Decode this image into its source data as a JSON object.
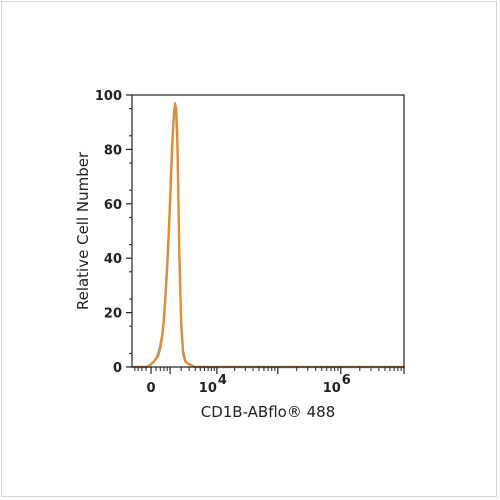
{
  "chart_data": {
    "type": "line",
    "title": "",
    "xlabel": "CD1B-ABflo® 488",
    "ylabel": "Relative Cell Number",
    "x_scale": "biexponential",
    "xlim": [
      -1000,
      10000000
    ],
    "ylim": [
      0,
      100
    ],
    "y_ticks": [
      0,
      20,
      40,
      60,
      80,
      100
    ],
    "x_ticks": [
      {
        "value": 0,
        "base": "0",
        "exp": ""
      },
      {
        "value": 10000,
        "base": "10",
        "exp": "4"
      },
      {
        "value": 1000000,
        "base": "10",
        "exp": "6"
      }
    ],
    "grid": false,
    "legend": "none",
    "series": [
      {
        "color": "#4fc3c8",
        "x": [
          -900,
          -500,
          -300,
          -150,
          0,
          100,
          200,
          300,
          400,
          500,
          600,
          700,
          800,
          900,
          1000,
          1100,
          1200,
          1300,
          1400,
          1500,
          1600,
          1700,
          1800,
          2000,
          2200,
          2500,
          3000,
          4000,
          6000,
          10000,
          100000,
          1000000,
          10000000
        ],
        "values": [
          0,
          0,
          0,
          0,
          1,
          2,
          3,
          5,
          8,
          12,
          18,
          28,
          38,
          50,
          62,
          75,
          86,
          94,
          96,
          92,
          82,
          62,
          40,
          15,
          5,
          2,
          1,
          0,
          0,
          0,
          0,
          0,
          0
        ]
      },
      {
        "color": "#e8892f",
        "x": [
          -900,
          -500,
          -300,
          -150,
          0,
          100,
          200,
          300,
          400,
          500,
          600,
          700,
          800,
          900,
          1000,
          1100,
          1200,
          1300,
          1400,
          1500,
          1600,
          1700,
          1800,
          2000,
          2200,
          2500,
          3000,
          4000,
          6000,
          10000,
          100000,
          1000000,
          10000000
        ],
        "values": [
          0,
          0,
          0,
          0,
          1,
          2,
          3,
          4,
          7,
          11,
          17,
          26,
          36,
          48,
          60,
          73,
          84,
          92,
          97,
          95,
          86,
          66,
          43,
          17,
          6,
          2,
          1,
          0,
          0,
          0,
          0,
          0,
          0
        ]
      }
    ]
  }
}
